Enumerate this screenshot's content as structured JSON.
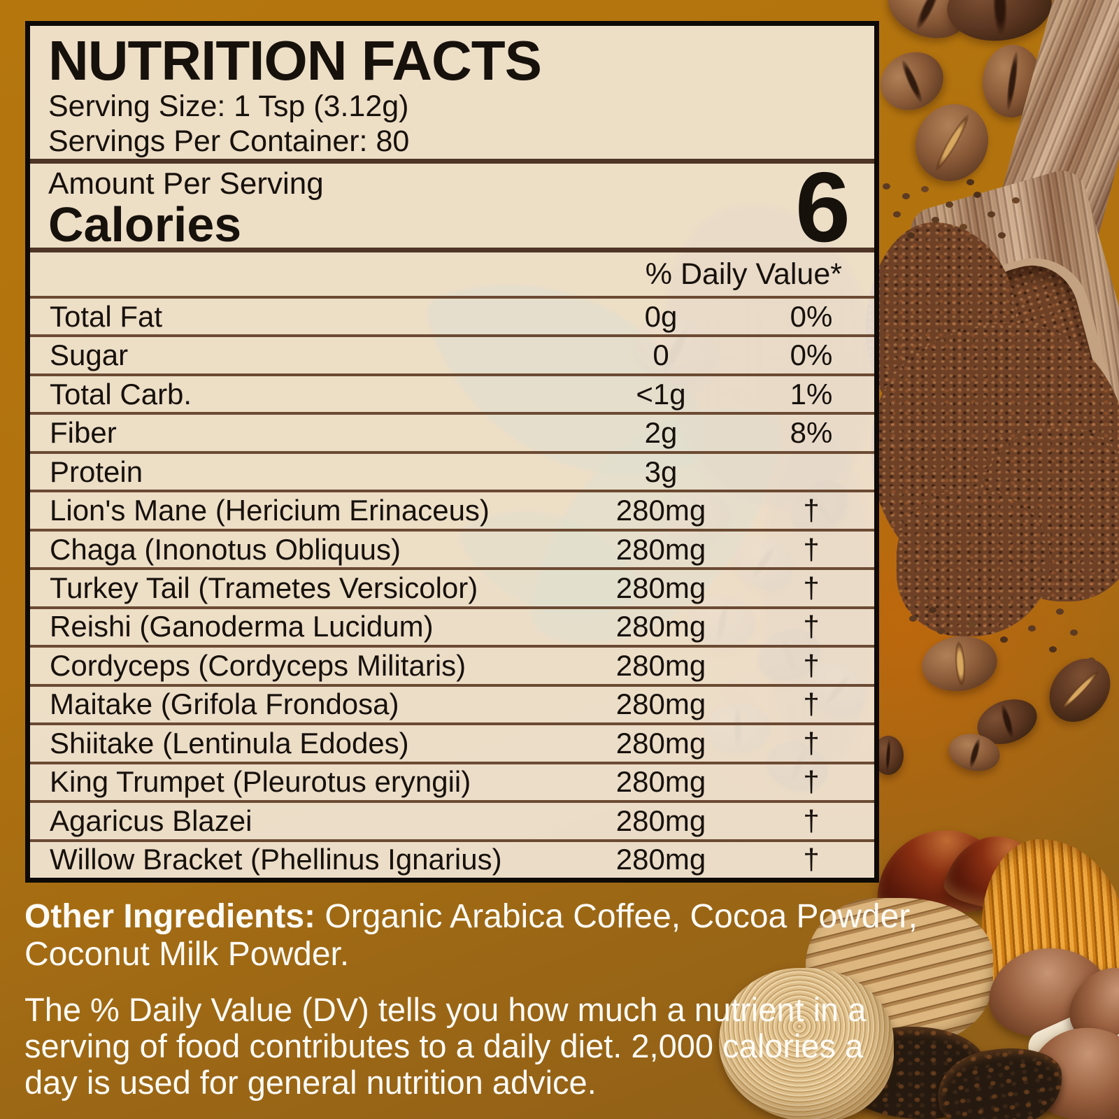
{
  "colors": {
    "background_amber": "#b2730e",
    "background_glow_orange": "#c86408",
    "panel_cream": "#f4ecdf",
    "panel_border_black": "#0d0a07",
    "section_divider_brown": "#4e3526",
    "row_line_brown": "#6b4a33",
    "text_dark": "#17110c",
    "footer_text_white": "#fdfbf6"
  },
  "label": {
    "title": "NUTRITION FACTS",
    "serving_size": "Serving Size: 1 Tsp (3.12g)",
    "servings_per_container": "Servings Per Container: 80",
    "amount_per_serving": "Amount Per Serving",
    "calories_label": "Calories",
    "calories_value": "6",
    "daily_value_header": "% Daily Value*",
    "nutrients": [
      {
        "name": "Total Fat",
        "amount": "0g",
        "dv": "0%"
      },
      {
        "name": "Sugar",
        "amount": "0",
        "dv": "0%"
      },
      {
        "name": "Total Carb.",
        "amount": "<1g",
        "dv": "1%"
      },
      {
        "name": "Fiber",
        "amount": "2g",
        "dv": "8%"
      },
      {
        "name": "Protein",
        "amount": "3g",
        "dv": ""
      },
      {
        "name": "Lion's Mane (Hericium Erinaceus)",
        "amount": "280mg",
        "dv": "†"
      },
      {
        "name": "Chaga (Inonotus Obliquus)",
        "amount": "280mg",
        "dv": "†"
      },
      {
        "name": "Turkey Tail (Trametes Versicolor)",
        "amount": "280mg",
        "dv": "†"
      },
      {
        "name": "Reishi  (Ganoderma Lucidum)",
        "amount": "280mg",
        "dv": "†"
      },
      {
        "name": "Cordyceps  (Cordyceps Militaris)",
        "amount": "280mg",
        "dv": "†"
      },
      {
        "name": "Maitake (Grifola Frondosa)",
        "amount": "280mg",
        "dv": "†"
      },
      {
        "name": "Shiitake  (Lentinula Edodes)",
        "amount": "280mg",
        "dv": "†"
      },
      {
        "name": "King Trumpet (Pleurotus eryngii)",
        "amount": "280mg",
        "dv": "†"
      },
      {
        "name": "Agaricus Blazei",
        "amount": "280mg",
        "dv": "†"
      },
      {
        "name": "Willow Bracket (Phellinus Ignarius)",
        "amount": "280mg",
        "dv": "†"
      }
    ]
  },
  "footer": {
    "other_ingredients": {
      "label": "Other Ingredients:",
      "line1_rest": " Organic Arabica Coffee, Cocoa Powder,",
      "line2": "Coconut Milk Powder."
    },
    "dv_note": "The % Daily Value (DV) tells you how much a nutrient in a\nserving of food contributes to a daily diet. 2,000 calories a\nday is used for general nutrition advice."
  }
}
